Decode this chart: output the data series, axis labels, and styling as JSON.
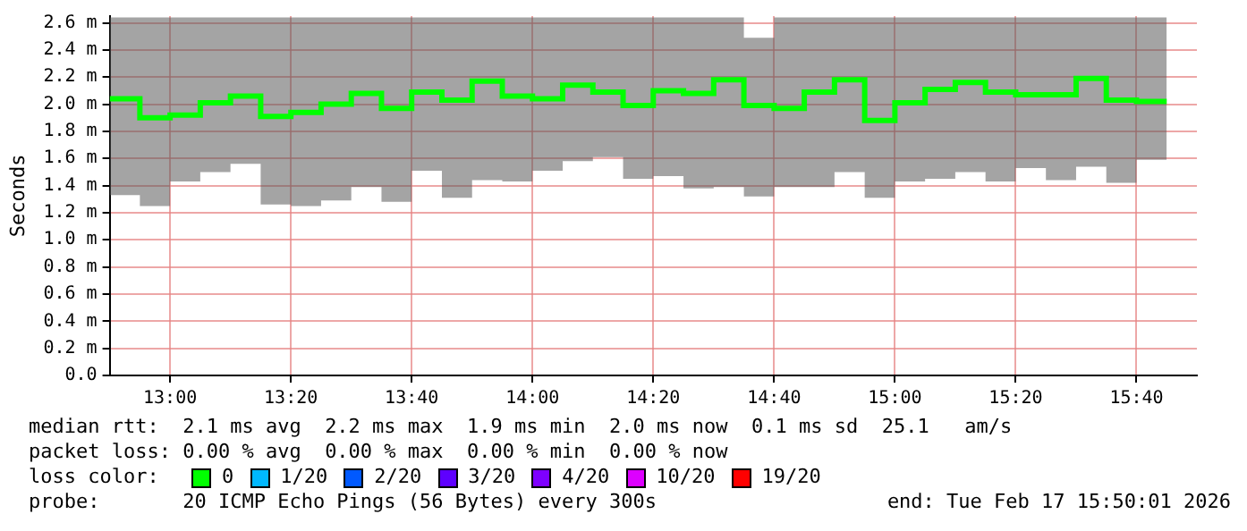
{
  "chart_data": {
    "type": "step",
    "ylabel": "Seconds",
    "legend_title": "loss color:",
    "legend": "bottom",
    "grid": true,
    "x": [
      "2026-02-17T12:50",
      "2026-02-17T12:55",
      "2026-02-17T13:00",
      "2026-02-17T13:05",
      "2026-02-17T13:10",
      "2026-02-17T13:15",
      "2026-02-17T13:20",
      "2026-02-17T13:25",
      "2026-02-17T13:30",
      "2026-02-17T13:35",
      "2026-02-17T13:40",
      "2026-02-17T13:45",
      "2026-02-17T13:50",
      "2026-02-17T13:55",
      "2026-02-17T14:00",
      "2026-02-17T14:05",
      "2026-02-17T14:10",
      "2026-02-17T14:15",
      "2026-02-17T14:20",
      "2026-02-17T14:25",
      "2026-02-17T14:30",
      "2026-02-17T14:35",
      "2026-02-17T14:40",
      "2026-02-17T14:45",
      "2026-02-17T14:50",
      "2026-02-17T14:55",
      "2026-02-17T15:00",
      "2026-02-17T15:05",
      "2026-02-17T15:10",
      "2026-02-17T15:15",
      "2026-02-17T15:20",
      "2026-02-17T15:25",
      "2026-02-17T15:30",
      "2026-02-17T15:35",
      "2026-02-17T15:40",
      "2026-02-17T15:45"
    ],
    "series": [
      {
        "name": "0",
        "color": "#00ff00",
        "values": [
          2.04,
          1.9,
          1.92,
          2.01,
          2.06,
          1.91,
          1.94,
          2.0,
          2.08,
          1.97,
          2.09,
          2.03,
          2.17,
          2.06,
          2.04,
          2.14,
          2.09,
          1.99,
          2.1,
          2.08,
          2.18,
          1.99,
          1.97,
          2.09,
          2.18,
          1.88,
          2.01,
          2.11,
          2.16,
          2.09,
          2.07,
          2.07,
          2.19,
          2.03,
          2.02,
          2.02
        ],
        "lower": [
          1.33,
          1.25,
          1.43,
          1.5,
          1.56,
          1.26,
          1.25,
          1.29,
          1.39,
          1.28,
          1.51,
          1.31,
          1.44,
          1.43,
          1.51,
          1.58,
          1.61,
          1.45,
          1.47,
          1.38,
          1.39,
          1.32,
          1.39,
          1.39,
          1.5,
          1.31,
          1.43,
          1.45,
          1.5,
          1.43,
          1.53,
          1.44,
          1.54,
          1.42,
          1.59,
          1.59
        ],
        "upper": [
          2.64,
          2.64,
          2.64,
          2.64,
          2.64,
          2.64,
          2.64,
          2.64,
          2.64,
          2.64,
          2.64,
          2.64,
          2.64,
          2.64,
          2.64,
          2.64,
          2.64,
          2.64,
          2.64,
          2.64,
          2.64,
          2.49,
          2.64,
          2.64,
          2.64,
          2.64,
          2.64,
          2.64,
          2.64,
          2.64,
          2.64,
          2.64,
          2.64,
          2.64,
          2.64,
          2.64
        ]
      },
      {
        "name": "1/20",
        "color": "#00b8ff",
        "values": [
          null,
          null,
          null,
          null,
          null,
          null,
          null,
          null,
          null,
          null,
          null,
          null,
          null,
          null,
          null,
          null,
          null,
          null,
          null,
          null,
          null,
          null,
          null,
          null,
          null,
          null,
          null,
          null,
          null,
          null,
          null,
          null,
          null,
          null,
          null,
          null
        ]
      },
      {
        "name": "2/20",
        "color": "#0059ff",
        "values": [
          null,
          null,
          null,
          null,
          null,
          null,
          null,
          null,
          null,
          null,
          null,
          null,
          null,
          null,
          null,
          null,
          null,
          null,
          null,
          null,
          null,
          null,
          null,
          null,
          null,
          null,
          null,
          null,
          null,
          null,
          null,
          null,
          null,
          null,
          null,
          null
        ]
      },
      {
        "name": "3/20",
        "color": "#5e00ff",
        "values": [
          null,
          null,
          null,
          null,
          null,
          null,
          null,
          null,
          null,
          null,
          null,
          null,
          null,
          null,
          null,
          null,
          null,
          null,
          null,
          null,
          null,
          null,
          null,
          null,
          null,
          null,
          null,
          null,
          null,
          null,
          null,
          null,
          null,
          null,
          null,
          null
        ]
      },
      {
        "name": "4/20",
        "color": "#7e00ff",
        "values": [
          null,
          null,
          null,
          null,
          null,
          null,
          null,
          null,
          null,
          null,
          null,
          null,
          null,
          null,
          null,
          null,
          null,
          null,
          null,
          null,
          null,
          null,
          null,
          null,
          null,
          null,
          null,
          null,
          null,
          null,
          null,
          null,
          null,
          null,
          null,
          null
        ]
      },
      {
        "name": "10/20",
        "color": "#dd00ff",
        "values": [
          null,
          null,
          null,
          null,
          null,
          null,
          null,
          null,
          null,
          null,
          null,
          null,
          null,
          null,
          null,
          null,
          null,
          null,
          null,
          null,
          null,
          null,
          null,
          null,
          null,
          null,
          null,
          null,
          null,
          null,
          null,
          null,
          null,
          null,
          null,
          null
        ]
      },
      {
        "name": "19/20",
        "color": "#ff0000",
        "values": [
          null,
          null,
          null,
          null,
          null,
          null,
          null,
          null,
          null,
          null,
          null,
          null,
          null,
          null,
          null,
          null,
          null,
          null,
          null,
          null,
          null,
          null,
          null,
          null,
          null,
          null,
          null,
          null,
          null,
          null,
          null,
          null,
          null,
          null,
          null,
          null
        ]
      }
    ],
    "xlim": [
      "2026-02-17T12:50",
      "2026-02-17T15:50"
    ],
    "xticks": [
      {
        "value": "2026-02-17T13:00",
        "label": "13:00"
      },
      {
        "value": "2026-02-17T13:20",
        "label": "13:20"
      },
      {
        "value": "2026-02-17T13:40",
        "label": "13:40"
      },
      {
        "value": "2026-02-17T14:00",
        "label": "14:00"
      },
      {
        "value": "2026-02-17T14:20",
        "label": "14:20"
      },
      {
        "value": "2026-02-17T14:40",
        "label": "14:40"
      },
      {
        "value": "2026-02-17T15:00",
        "label": "15:00"
      },
      {
        "value": "2026-02-17T15:20",
        "label": "15:20"
      },
      {
        "value": "2026-02-17T15:40",
        "label": "15:40"
      }
    ],
    "ylim": [
      0,
      2.65
    ],
    "yticks": [
      {
        "value": 0,
        "label": "0.0"
      },
      {
        "value": 0.2,
        "label": "0.2 m"
      },
      {
        "value": 0.4,
        "label": "0.4 m"
      },
      {
        "value": 0.6,
        "label": "0.6 m"
      },
      {
        "value": 0.8,
        "label": "0.8 m"
      },
      {
        "value": 1.0,
        "label": "1.0 m"
      },
      {
        "value": 1.2,
        "label": "1.2 m"
      },
      {
        "value": 1.4,
        "label": "1.4 m"
      },
      {
        "value": 1.6,
        "label": "1.6 m"
      },
      {
        "value": 1.8,
        "label": "1.8 m"
      },
      {
        "value": 2.0,
        "label": "2.0 m"
      },
      {
        "value": 2.2,
        "label": "2.2 m"
      },
      {
        "value": 2.4,
        "label": "2.4 m"
      },
      {
        "value": 2.6,
        "label": "2.6 m"
      }
    ],
    "annotations": [
      "median rtt:  2.1 ms avg  2.2 ms max  1.9 ms min  2.0 ms now  0.1 ms sd  25.1   am/s",
      "packet loss: 0.00 % avg  0.00 % max  0.00 % min  0.00 % now",
      "probe:       20 ICMP Echo Pings (56 Bytes) every 300s",
      "end: Tue Feb 17 15:50:01 2026"
    ]
  }
}
